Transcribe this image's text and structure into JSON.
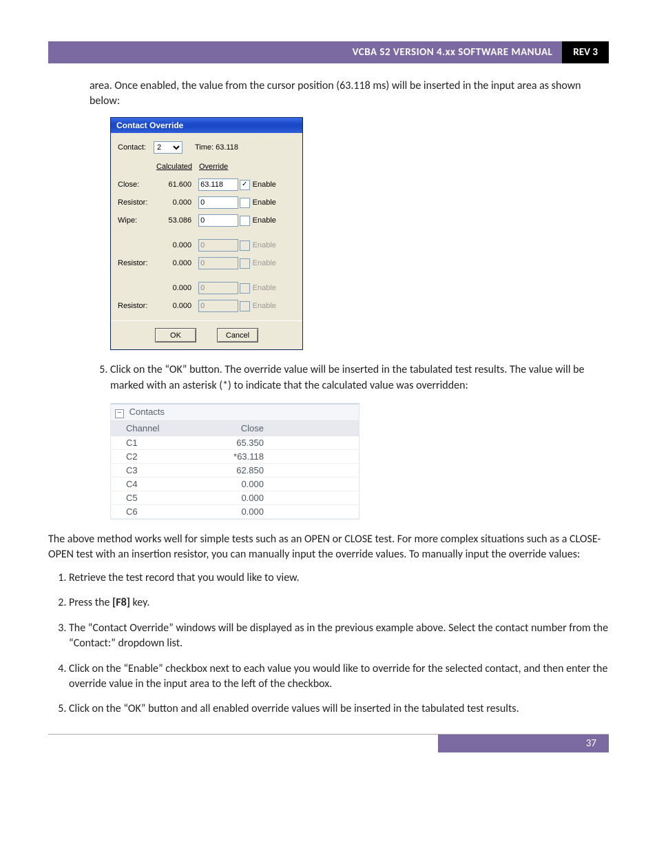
{
  "header": {
    "title": "VCBA S2 VERSION 4.xx SOFTWARE MANUAL",
    "rev": "REV 3"
  },
  "intro": "area. Once enabled, the value from the cursor position (63.118 ms) will be inserted in the input area as shown below:",
  "dlg": {
    "title": "Contact Override",
    "contact_label": "Contact:",
    "contact_value": "2",
    "time_label": "Time: 63.118",
    "col_calc": "Calculated",
    "col_over": "Override",
    "rows": [
      {
        "label": "Close:",
        "calc": "61.600",
        "over": "63.118",
        "en": true,
        "dis": false
      },
      {
        "label": "Resistor:",
        "calc": "0.000",
        "over": "0",
        "en": false,
        "dis": false
      },
      {
        "label": "Wipe:",
        "calc": "53.086",
        "over": "0",
        "en": false,
        "dis": false
      },
      {
        "label": "",
        "calc": "0.000",
        "over": "0",
        "en": false,
        "dis": true
      },
      {
        "label": "Resistor:",
        "calc": "0.000",
        "over": "0",
        "en": false,
        "dis": true
      },
      {
        "label": "",
        "calc": "0.000",
        "over": "0",
        "en": false,
        "dis": true
      },
      {
        "label": "Resistor:",
        "calc": "0.000",
        "over": "0",
        "en": false,
        "dis": true
      }
    ],
    "enable": "Enable",
    "ok": "OK",
    "cancel": "Cancel"
  },
  "step5": "Click on the “OK” button. The override value will be inserted in the tabulated test results. The value will be marked with an asterisk (*) to indicate that the calculated value was overridden:",
  "table": {
    "group": "Contacts",
    "col1": "Channel",
    "col2": "Close",
    "rows": [
      {
        "ch": "C1",
        "close": "65.350"
      },
      {
        "ch": "C2",
        "close": "*63.118"
      },
      {
        "ch": "C3",
        "close": "62.850"
      },
      {
        "ch": "C4",
        "close": "0.000"
      },
      {
        "ch": "C5",
        "close": "0.000"
      },
      {
        "ch": "C6",
        "close": "0.000"
      }
    ]
  },
  "para2": "The above method works well for simple tests such as an OPEN or CLOSE test. For more complex situations such as a CLOSE-OPEN test with an insertion resistor, you can manually input the override values. To manually input the override values:",
  "steps2": [
    "Retrieve the test record that you would like to view.",
    "Press the [F8] key.",
    "The “Contact Override” windows will be displayed as in the previous example above. Select the contact number from the “Contact:” dropdown list.",
    "Click on the “Enable” checkbox next to each value you would like to override for the selected contact, and then enter the override value in the input area to the left of the checkbox.",
    "Click on the “OK” button and all enabled override values will be inserted in the tabulated test results."
  ],
  "footer": {
    "page": "37"
  }
}
